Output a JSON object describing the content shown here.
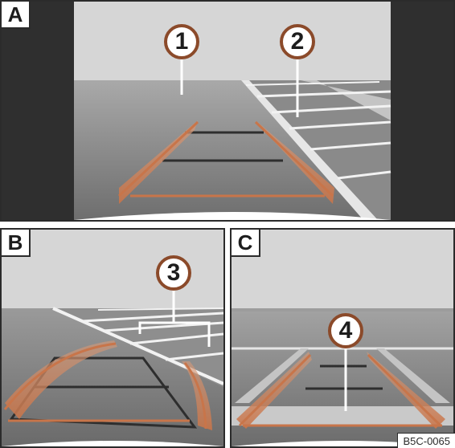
{
  "panels": {
    "a": {
      "letter": "A"
    },
    "b": {
      "letter": "B"
    },
    "c": {
      "letter": "C"
    }
  },
  "callouts": {
    "one": "1",
    "two": "2",
    "three": "3",
    "four": "4"
  },
  "figure_code": "B5C-0065",
  "colors": {
    "sky": "#d3d3d3",
    "road": "#7e7e7e",
    "dark": "#2f2f2f",
    "guide_orange": "#c8754a",
    "callout_border": "#8b4a2a",
    "parking_lines": "#f2f2f2"
  }
}
